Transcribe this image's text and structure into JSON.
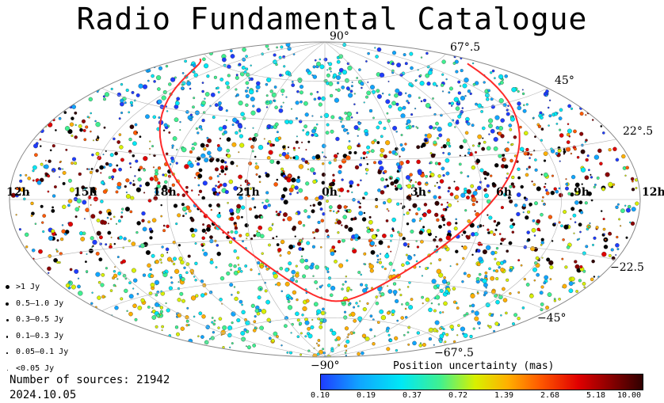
{
  "title": "Radio Fundamental Catalogue",
  "ra_labels": [
    "12h",
    "15h",
    "18h",
    "21h",
    "0h",
    "3h",
    "6h",
    "9h",
    "12h"
  ],
  "dec_labels": [
    "90°",
    "67°.5",
    "45°",
    "22°.5",
    "−22.5",
    "−45°",
    "−67°.5",
    "−90°"
  ],
  "legend": {
    "items": [
      {
        "label": ">1 Jy",
        "size": 5
      },
      {
        "label": "0.5–1.0 Jy",
        "size": 4
      },
      {
        "label": "0.3–0.5 Jy",
        "size": 3
      },
      {
        "label": "0.1–0.3 Jy",
        "size": 2.4
      },
      {
        "label": "0.05–0.1 Jy",
        "size": 1.6
      },
      {
        "label": "<0.05 Jy",
        "size": 1
      }
    ]
  },
  "sources_label": "Number of sources: 21942",
  "date": "2024.10.05",
  "colorbar": {
    "title": "Position uncertainty (mas)",
    "ticks": [
      "0.10",
      "0.19",
      "0.37",
      "0.72",
      "1.39",
      "2.68",
      "5.18",
      "10.00"
    ],
    "colors": [
      "#1f3dff",
      "#10a5ff",
      "#00e8f5",
      "#40f090",
      "#d8f000",
      "#ffb000",
      "#ff5a00",
      "#e00000",
      "#8a0000",
      "#300000"
    ]
  },
  "colors": {
    "galactic_plane": "#ff2a2a",
    "grid": "#b4b4b4"
  }
}
